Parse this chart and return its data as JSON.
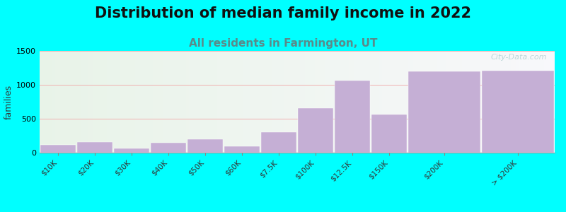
{
  "title": "Distribution of median family income in 2022",
  "subtitle": "All residents in Farmington, UT",
  "categories": [
    "$10K",
    "$20K",
    "$30K",
    "$40K",
    "$50K",
    "$60K",
    "$7.5K",
    "$100K",
    "$12.5K",
    "$150K",
    "$200K",
    "> $200K"
  ],
  "values": [
    110,
    155,
    60,
    150,
    195,
    90,
    300,
    660,
    1060,
    565,
    1200,
    1210
  ],
  "bar_widths": [
    1,
    1,
    1,
    1,
    1,
    1,
    1,
    1,
    1,
    1,
    2,
    2
  ],
  "bar_color": "#c5afd5",
  "ylabel": "families",
  "ylim": [
    0,
    1500
  ],
  "yticks": [
    0,
    500,
    1000,
    1500
  ],
  "background_color": "#00ffff",
  "title_fontsize": 15,
  "subtitle_fontsize": 11,
  "subtitle_color": "#5a8a8a",
  "watermark": "City-Data.com",
  "grid_color": "#f0b0b0",
  "ylabel_fontsize": 9,
  "xtick_fontsize": 7.5,
  "ytick_fontsize": 8
}
